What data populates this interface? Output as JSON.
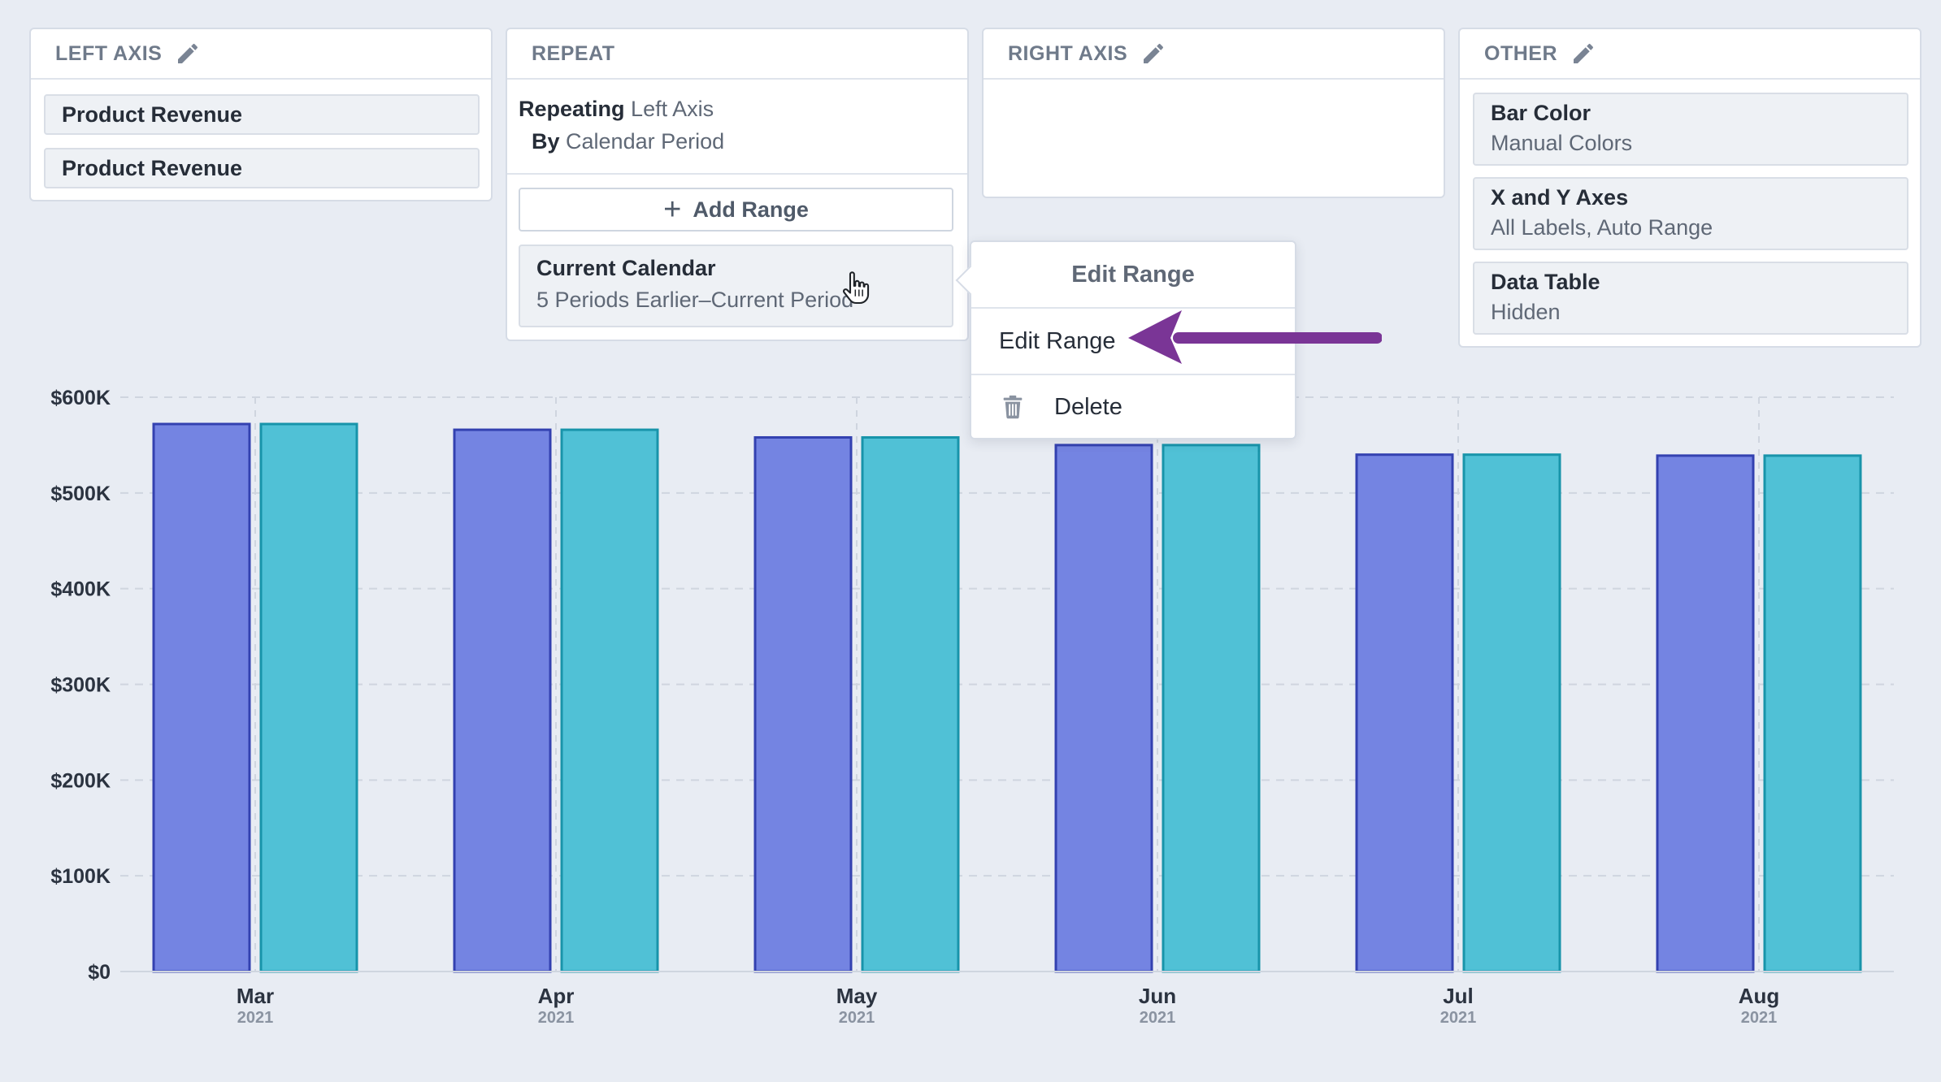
{
  "left_axis": {
    "header": "LEFT AXIS",
    "items": [
      "Product Revenue",
      "Product Revenue"
    ]
  },
  "repeat": {
    "header": "REPEAT",
    "repeating_label": "Repeating",
    "repeating_value": "Left Axis",
    "by_label": "By",
    "by_value": "Calendar Period",
    "add_range_label": "Add Range",
    "range_title": "Current Calendar",
    "range_sub": "5 Periods Earlier–Current Period"
  },
  "right_axis": {
    "header": "RIGHT AXIS"
  },
  "other": {
    "header": "OTHER",
    "items": [
      {
        "title": "Bar Color",
        "sub": "Manual Colors"
      },
      {
        "title": "X and Y Axes",
        "sub": "All Labels, Auto Range"
      },
      {
        "title": "Data Table",
        "sub": "Hidden"
      }
    ]
  },
  "context_menu": {
    "title": "Edit Range",
    "items": [
      "Edit Range",
      "Delete"
    ]
  },
  "icons": {
    "edit": "pencil-icon",
    "add": "plus-icon",
    "delete": "trash-icon",
    "pointer": "hand-cursor-icon",
    "callout": "arrow-icon"
  },
  "colors": {
    "series_1_fill": "#7484e2",
    "series_1_stroke": "#3341b0",
    "series_2_fill": "#50c1d6",
    "series_2_stroke": "#1894aa",
    "arrow": "#7a3596"
  },
  "chart_data": {
    "type": "bar",
    "categories": [
      "Mar",
      "Apr",
      "May",
      "Jun",
      "Jul",
      "Aug"
    ],
    "category_years": [
      "2021",
      "2021",
      "2021",
      "2021",
      "2021",
      "2021"
    ],
    "series": [
      {
        "values": [
          572000,
          566000,
          558000,
          550000,
          540000,
          539000
        ]
      },
      {
        "values": [
          572000,
          566000,
          558000,
          550000,
          540000,
          539000
        ]
      }
    ],
    "ylim": [
      0,
      600000
    ],
    "yticks": [
      "$0",
      "$100K",
      "$200K",
      "$300K",
      "$400K",
      "$500K",
      "$600K"
    ],
    "grid": true,
    "legend": "none"
  }
}
